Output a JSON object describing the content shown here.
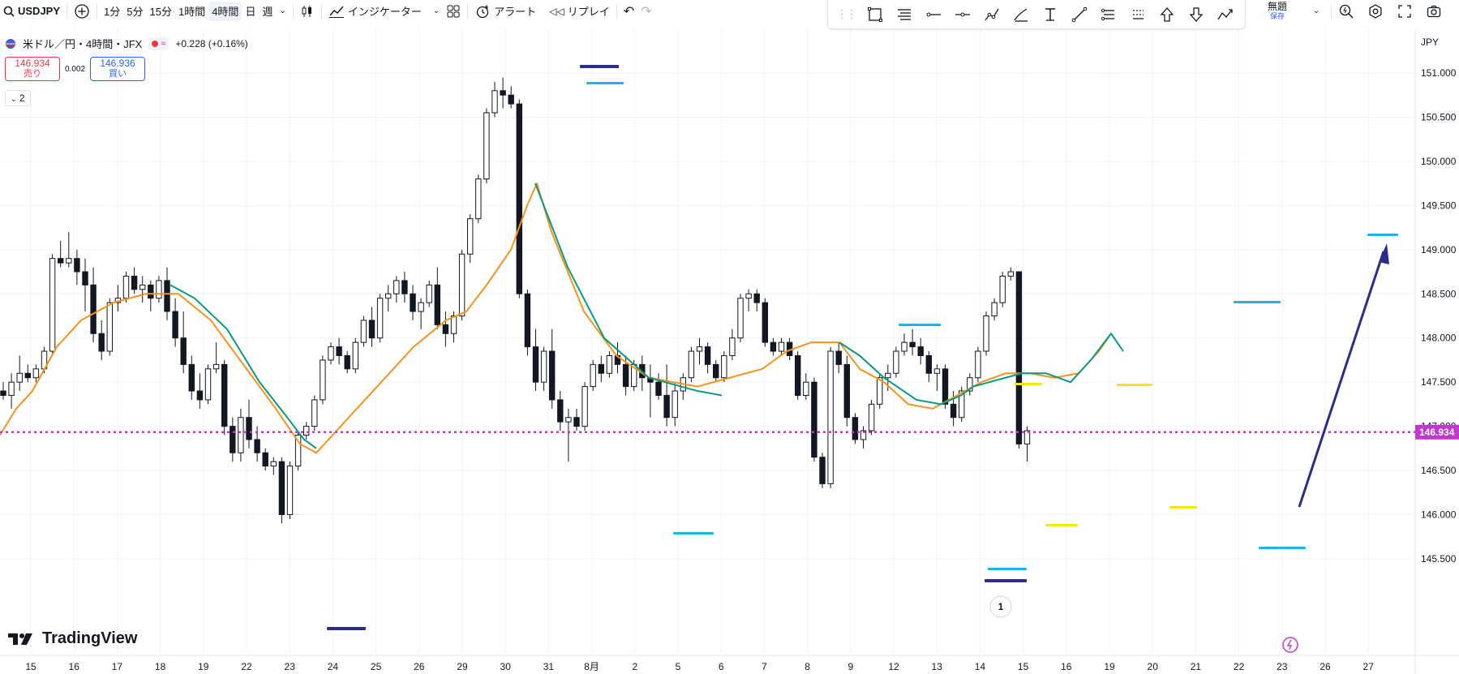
{
  "toolbar": {
    "symbol": "USDJPY",
    "intervals": [
      "1分",
      "5分",
      "15分",
      "1時間",
      "4時間",
      "日",
      "週"
    ],
    "active_interval": "4時間",
    "indicators_label": "インジケーター",
    "alert_label": "アラート",
    "replay_label": "リプレイ"
  },
  "rightbar": {
    "layout_title": "無題",
    "save_label": "保存"
  },
  "legend": {
    "title": "米ドル／円・4時間・JFX",
    "change": "+0.228 (+0.16%)"
  },
  "quote": {
    "sell_price": "146.934",
    "sell_label": "売り",
    "spread": "0.002",
    "buy_price": "146.936",
    "buy_label": "買い"
  },
  "studies_count": "2",
  "logo_text": "TradingView",
  "marker_label": "1",
  "colors": {
    "up": "#131722",
    "ma_orange": "#f7931a",
    "ma_green": "#089981",
    "current_price_line": "#c038cc",
    "level_blue": "#1eb4e8",
    "level_navy": "#2a2e8a",
    "level_yellow": "#f5e61a",
    "arrow": "#2a2e8a"
  },
  "chart_data": {
    "type": "candlestick",
    "currency_label": "JPY",
    "y_ticks": [
      "151.000",
      "150.500",
      "150.000",
      "149.500",
      "149.000",
      "148.500",
      "148.000",
      "147.500",
      "147.000",
      "146.500",
      "146.000",
      "145.500"
    ],
    "x_ticks": [
      "15",
      "16",
      "17",
      "18",
      "19",
      "22",
      "23",
      "24",
      "25",
      "26",
      "29",
      "30",
      "31",
      "8月",
      "2",
      "5",
      "6",
      "7",
      "8",
      "9",
      "12",
      "13",
      "14",
      "15",
      "16",
      "19",
      "20",
      "21",
      "22",
      "23",
      "26",
      "27"
    ],
    "current_price": "146.934",
    "ohlc": [
      [
        147.4,
        147.5,
        147.3,
        147.35
      ],
      [
        147.35,
        147.6,
        147.2,
        147.5
      ],
      [
        147.5,
        147.8,
        147.4,
        147.6
      ],
      [
        147.6,
        147.7,
        147.5,
        147.55
      ],
      [
        147.55,
        147.7,
        147.5,
        147.65
      ],
      [
        147.65,
        147.9,
        147.6,
        147.85
      ],
      [
        147.85,
        148.95,
        147.8,
        148.9
      ],
      [
        148.9,
        149.1,
        148.8,
        148.85
      ],
      [
        148.85,
        149.2,
        148.8,
        148.9
      ],
      [
        148.9,
        149.0,
        148.6,
        148.75
      ],
      [
        148.75,
        148.9,
        148.3,
        148.6
      ],
      [
        148.6,
        148.8,
        147.95,
        148.05
      ],
      [
        148.05,
        148.2,
        147.75,
        147.85
      ],
      [
        147.85,
        148.45,
        147.8,
        148.4
      ],
      [
        148.4,
        148.6,
        148.3,
        148.45
      ],
      [
        148.45,
        148.75,
        148.4,
        148.7
      ],
      [
        148.7,
        148.8,
        148.5,
        148.55
      ],
      [
        148.55,
        148.7,
        148.4,
        148.6
      ],
      [
        148.6,
        148.65,
        148.3,
        148.45
      ],
      [
        148.45,
        148.7,
        148.4,
        148.65
      ],
      [
        148.65,
        148.8,
        148.2,
        148.3
      ],
      [
        148.3,
        148.45,
        147.9,
        148.0
      ],
      [
        148.0,
        148.3,
        147.6,
        147.7
      ],
      [
        147.7,
        147.8,
        147.3,
        147.4
      ],
      [
        147.4,
        147.6,
        147.2,
        147.3
      ],
      [
        147.3,
        147.7,
        147.25,
        147.65
      ],
      [
        147.65,
        147.95,
        147.6,
        147.7
      ],
      [
        147.7,
        147.75,
        146.9,
        147.0
      ],
      [
        147.0,
        147.1,
        146.6,
        146.7
      ],
      [
        146.7,
        147.2,
        146.6,
        147.1
      ],
      [
        147.1,
        147.3,
        146.75,
        146.85
      ],
      [
        146.85,
        147.0,
        146.6,
        146.7
      ],
      [
        146.7,
        146.75,
        146.5,
        146.55
      ],
      [
        146.55,
        146.65,
        146.45,
        146.6
      ],
      [
        146.6,
        146.65,
        145.9,
        146.0
      ],
      [
        146.0,
        146.6,
        145.95,
        146.55
      ],
      [
        146.55,
        146.95,
        146.5,
        146.9
      ],
      [
        146.9,
        147.05,
        146.85,
        147.0
      ],
      [
        147.0,
        147.35,
        146.95,
        147.3
      ],
      [
        147.3,
        147.8,
        147.25,
        147.75
      ],
      [
        147.75,
        147.95,
        147.7,
        147.9
      ],
      [
        147.9,
        148.0,
        147.7,
        147.8
      ],
      [
        147.8,
        147.85,
        147.6,
        147.65
      ],
      [
        147.65,
        148.0,
        147.6,
        147.95
      ],
      [
        147.95,
        148.25,
        147.9,
        148.2
      ],
      [
        148.2,
        148.35,
        147.9,
        148.0
      ],
      [
        148.0,
        148.5,
        147.95,
        148.45
      ],
      [
        148.45,
        148.6,
        148.3,
        148.5
      ],
      [
        148.5,
        148.7,
        148.4,
        148.65
      ],
      [
        148.65,
        148.75,
        148.4,
        148.5
      ],
      [
        148.5,
        148.6,
        148.2,
        148.3
      ],
      [
        148.3,
        148.45,
        148.1,
        148.4
      ],
      [
        148.4,
        148.65,
        148.35,
        148.6
      ],
      [
        148.6,
        148.8,
        148.1,
        148.15
      ],
      [
        148.15,
        148.3,
        147.9,
        148.05
      ],
      [
        148.05,
        148.3,
        147.95,
        148.25
      ],
      [
        148.25,
        149.0,
        148.2,
        148.95
      ],
      [
        148.95,
        149.4,
        148.85,
        149.35
      ],
      [
        149.35,
        149.85,
        149.3,
        149.8
      ],
      [
        149.8,
        150.6,
        149.75,
        150.55
      ],
      [
        150.55,
        150.9,
        150.5,
        150.8
      ],
      [
        150.8,
        150.95,
        150.6,
        150.75
      ],
      [
        150.75,
        150.85,
        150.6,
        150.65
      ],
      [
        150.65,
        150.7,
        148.45,
        148.5
      ],
      [
        148.5,
        148.55,
        147.8,
        147.9
      ],
      [
        147.9,
        148.1,
        147.4,
        147.5
      ],
      [
        147.5,
        147.9,
        147.4,
        147.85
      ],
      [
        147.85,
        148.1,
        147.2,
        147.3
      ],
      [
        147.3,
        147.4,
        146.95,
        147.05
      ],
      [
        147.05,
        147.2,
        146.6,
        147.1
      ],
      [
        147.1,
        147.2,
        146.95,
        147.0
      ],
      [
        147.0,
        147.5,
        146.95,
        147.45
      ],
      [
        147.45,
        147.75,
        147.4,
        147.7
      ],
      [
        147.7,
        147.8,
        147.5,
        147.6
      ],
      [
        147.6,
        147.85,
        147.55,
        147.8
      ],
      [
        147.8,
        147.95,
        147.6,
        147.7
      ],
      [
        147.7,
        147.8,
        147.35,
        147.45
      ],
      [
        147.45,
        147.75,
        147.4,
        147.7
      ],
      [
        147.7,
        147.8,
        147.4,
        147.55
      ],
      [
        147.55,
        147.7,
        147.1,
        147.5
      ],
      [
        147.5,
        147.6,
        147.3,
        147.35
      ],
      [
        147.35,
        147.7,
        147.0,
        147.1
      ],
      [
        147.1,
        147.5,
        147.0,
        147.4
      ],
      [
        147.4,
        147.6,
        147.3,
        147.55
      ],
      [
        147.55,
        147.9,
        147.5,
        147.85
      ],
      [
        147.85,
        148.0,
        147.7,
        147.9
      ],
      [
        147.9,
        147.95,
        147.6,
        147.7
      ],
      [
        147.7,
        147.75,
        147.5,
        147.55
      ],
      [
        147.55,
        147.85,
        147.5,
        147.8
      ],
      [
        147.8,
        148.1,
        147.75,
        148.0
      ],
      [
        148.0,
        148.5,
        147.95,
        148.45
      ],
      [
        148.45,
        148.55,
        148.3,
        148.5
      ],
      [
        148.5,
        148.55,
        148.3,
        148.4
      ],
      [
        148.4,
        148.45,
        147.9,
        147.95
      ],
      [
        147.95,
        148.0,
        147.8,
        147.85
      ],
      [
        147.85,
        148.0,
        147.8,
        147.95
      ],
      [
        147.95,
        148.0,
        147.75,
        147.8
      ],
      [
        147.8,
        147.85,
        147.3,
        147.35
      ],
      [
        147.35,
        147.6,
        147.3,
        147.5
      ],
      [
        147.5,
        147.55,
        146.6,
        146.65
      ],
      [
        146.65,
        146.7,
        146.3,
        146.35
      ],
      [
        146.35,
        147.9,
        146.3,
        147.85
      ],
      [
        147.85,
        147.95,
        147.6,
        147.7
      ],
      [
        147.7,
        147.8,
        147.0,
        147.1
      ],
      [
        147.1,
        147.15,
        146.8,
        146.85
      ],
      [
        146.85,
        147.0,
        146.75,
        146.95
      ],
      [
        146.95,
        147.3,
        146.9,
        147.25
      ],
      [
        147.25,
        147.6,
        147.2,
        147.55
      ],
      [
        147.55,
        147.7,
        147.4,
        147.6
      ],
      [
        147.6,
        147.9,
        147.55,
        147.85
      ],
      [
        147.85,
        148.05,
        147.8,
        147.95
      ],
      [
        147.95,
        148.1,
        147.8,
        147.9
      ],
      [
        147.9,
        148.0,
        147.7,
        147.8
      ],
      [
        147.8,
        147.85,
        147.5,
        147.6
      ],
      [
        147.6,
        147.7,
        147.4,
        147.65
      ],
      [
        147.65,
        147.7,
        147.2,
        147.25
      ],
      [
        147.25,
        147.4,
        147.0,
        147.1
      ],
      [
        147.1,
        147.45,
        147.05,
        147.4
      ],
      [
        147.4,
        147.6,
        147.35,
        147.55
      ],
      [
        147.55,
        147.9,
        147.5,
        147.85
      ],
      [
        147.85,
        148.3,
        147.8,
        148.25
      ],
      [
        148.25,
        148.45,
        148.2,
        148.4
      ],
      [
        148.4,
        148.75,
        148.35,
        148.7
      ],
      [
        148.7,
        148.8,
        148.65,
        148.75
      ],
      [
        148.75,
        148.75,
        146.75,
        146.8
      ],
      [
        146.8,
        147.0,
        146.6,
        146.95
      ]
    ],
    "ma_orange": [
      [
        0,
        146.9
      ],
      [
        20,
        147.2
      ],
      [
        40,
        147.4
      ],
      [
        70,
        147.9
      ],
      [
        100,
        148.2
      ],
      [
        140,
        148.4
      ],
      [
        180,
        148.5
      ],
      [
        220,
        148.5
      ],
      [
        260,
        148.2
      ],
      [
        300,
        147.7
      ],
      [
        340,
        147.2
      ],
      [
        370,
        146.8
      ],
      [
        390,
        146.7
      ],
      [
        410,
        146.9
      ],
      [
        440,
        147.2
      ],
      [
        470,
        147.5
      ],
      [
        510,
        147.9
      ],
      [
        550,
        148.2
      ],
      [
        575,
        148.3
      ],
      [
        600,
        148.6
      ],
      [
        630,
        149.0
      ],
      [
        650,
        149.5
      ],
      [
        662,
        149.75
      ],
      [
        680,
        149.2
      ],
      [
        720,
        148.3
      ],
      [
        760,
        147.8
      ],
      [
        800,
        147.55
      ],
      [
        860,
        147.45
      ],
      [
        900,
        147.55
      ],
      [
        940,
        147.65
      ],
      [
        970,
        147.85
      ],
      [
        1000,
        147.95
      ],
      [
        1035,
        147.95
      ],
      [
        1060,
        147.65
      ],
      [
        1090,
        147.5
      ],
      [
        1120,
        147.25
      ],
      [
        1150,
        147.2
      ],
      [
        1180,
        147.35
      ],
      [
        1210,
        147.5
      ],
      [
        1240,
        147.6
      ],
      [
        1270,
        147.6
      ],
      [
        1300,
        147.55
      ],
      [
        1330,
        147.6
      ],
      [
        1355,
        147.85
      ],
      [
        1370,
        148.05
      ]
    ],
    "ma_green": [
      [
        210,
        148.6
      ],
      [
        240,
        148.45
      ],
      [
        280,
        148.1
      ],
      [
        320,
        147.5
      ],
      [
        350,
        147.15
      ],
      [
        375,
        146.85
      ],
      [
        390,
        146.75
      ],
      [
        660,
        149.75
      ],
      [
        700,
        148.8
      ],
      [
        745,
        148.0
      ],
      [
        800,
        147.55
      ],
      [
        860,
        147.4
      ],
      [
        890,
        147.35
      ],
      [
        1035,
        147.95
      ],
      [
        1060,
        147.8
      ],
      [
        1090,
        147.55
      ],
      [
        1130,
        147.3
      ],
      [
        1160,
        147.25
      ],
      [
        1185,
        147.35
      ],
      [
        1200,
        147.45
      ],
      [
        1260,
        147.6
      ],
      [
        1290,
        147.6
      ],
      [
        1320,
        147.5
      ],
      [
        1345,
        147.75
      ],
      [
        1370,
        148.05
      ],
      [
        1385,
        147.85
      ]
    ]
  }
}
